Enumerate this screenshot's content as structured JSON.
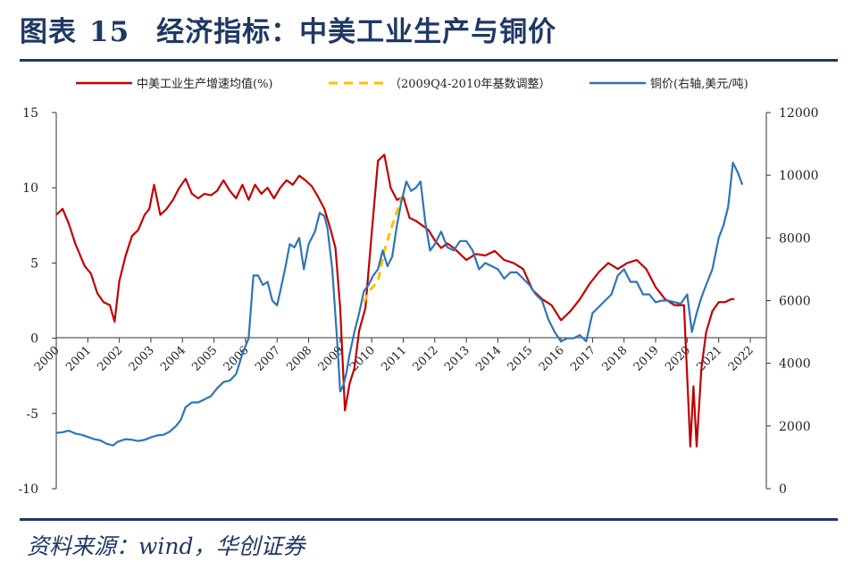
{
  "header": {
    "title_prefix": "图表",
    "title_number": "15",
    "title_text": "经济指标：中美工业生产与铜价"
  },
  "footer": {
    "source": "资料来源：wind，华创证券"
  },
  "chart_data": {
    "type": "line",
    "title": "经济指标：中美工业生产与铜价",
    "x_ticks": [
      "2000",
      "2001",
      "2002",
      "2003",
      "2004",
      "2005",
      "2006",
      "2007",
      "2008",
      "2009",
      "2010",
      "2011",
      "2012",
      "2013",
      "2014",
      "2015",
      "2016",
      "2017",
      "2018",
      "2019",
      "2020",
      "2021",
      "2022"
    ],
    "y_left": {
      "min": -10,
      "max": 15,
      "ticks": [
        15,
        10,
        5,
        0,
        -5,
        -10
      ]
    },
    "y_right": {
      "min": 0,
      "max": 12000,
      "ticks": [
        12000,
        10000,
        8000,
        6000,
        4000,
        2000,
        0
      ]
    },
    "legend": [
      "中美工业生产增速均值(%)",
      "（2009Q4-2010年基数调整）",
      "铜价(右轴,美元/吨)"
    ],
    "colors": {
      "ip": "#c00000",
      "adj": "#ffc000",
      "copper": "#2e75b6",
      "brand": "#1f3864"
    },
    "series": [
      {
        "name": "中美工业生产增速均值(%)",
        "axis": "left",
        "color": "#c00000",
        "style": "solid",
        "x": [
          2000.0,
          2000.2,
          2000.4,
          2000.6,
          2000.9,
          2001.1,
          2001.3,
          2001.5,
          2001.7,
          2001.85,
          2002.0,
          2002.2,
          2002.4,
          2002.6,
          2002.8,
          2002.95,
          2003.1,
          2003.3,
          2003.5,
          2003.7,
          2003.9,
          2004.1,
          2004.3,
          2004.5,
          2004.7,
          2004.9,
          2005.1,
          2005.3,
          2005.5,
          2005.7,
          2005.9,
          2006.1,
          2006.3,
          2006.5,
          2006.7,
          2006.9,
          2007.1,
          2007.3,
          2007.5,
          2007.7,
          2007.9,
          2008.1,
          2008.3,
          2008.5,
          2008.7,
          2008.85,
          2009.0,
          2009.15,
          2009.3,
          2009.45,
          2009.6,
          2009.8,
          2010.0,
          2010.2,
          2010.4,
          2010.6,
          2010.8,
          2011.0,
          2011.2,
          2011.4,
          2011.6,
          2011.8,
          2012.0,
          2012.2,
          2012.4,
          2012.6,
          2012.8,
          2013.0,
          2013.3,
          2013.6,
          2013.9,
          2014.2,
          2014.5,
          2014.8,
          2015.1,
          2015.4,
          2015.7,
          2016.0,
          2016.3,
          2016.6,
          2016.9,
          2017.2,
          2017.5,
          2017.8,
          2018.1,
          2018.4,
          2018.7,
          2019.0,
          2019.3,
          2019.6,
          2019.9,
          2020.1,
          2020.2,
          2020.3,
          2020.45,
          2020.6,
          2020.8,
          2021.0,
          2021.2,
          2021.4,
          2021.5
        ],
        "y": [
          8.2,
          8.6,
          7.6,
          6.3,
          4.8,
          4.3,
          3.0,
          2.4,
          2.2,
          1.1,
          3.8,
          5.5,
          6.8,
          7.2,
          8.2,
          8.6,
          10.2,
          8.2,
          8.6,
          9.2,
          10.0,
          10.6,
          9.6,
          9.3,
          9.6,
          9.5,
          9.8,
          10.5,
          9.8,
          9.3,
          10.2,
          9.2,
          10.2,
          9.6,
          10.0,
          9.3,
          10.0,
          10.5,
          10.2,
          10.8,
          10.5,
          10.1,
          9.4,
          8.6,
          7.2,
          6.0,
          2.0,
          -4.8,
          -3.0,
          -2.0,
          0.5,
          2.0,
          7.0,
          11.8,
          12.2,
          10.0,
          9.2,
          9.4,
          8.0,
          7.8,
          7.5,
          7.2,
          6.5,
          6.0,
          6.3,
          6.0,
          5.6,
          5.2,
          5.6,
          5.5,
          5.8,
          5.2,
          5.0,
          4.6,
          3.2,
          2.6,
          2.2,
          1.2,
          1.8,
          2.6,
          3.6,
          4.4,
          5.0,
          4.6,
          5.0,
          5.2,
          4.6,
          3.4,
          2.6,
          2.2,
          2.2,
          -7.2,
          -3.2,
          -7.2,
          -2.0,
          0.4,
          1.8,
          2.4,
          2.4,
          2.6,
          2.6
        ]
      },
      {
        "name": "（2009Q4-2010年基数调整）",
        "axis": "left",
        "color": "#ffc000",
        "style": "dashed",
        "x": [
          2009.75,
          2009.95,
          2010.2,
          2010.4,
          2010.6,
          2010.8,
          2010.95
        ],
        "y": [
          2.4,
          3.2,
          3.8,
          5.8,
          7.2,
          8.4,
          9.4
        ]
      },
      {
        "name": "铜价(右轴,美元/吨)",
        "axis": "right",
        "color": "#2e75b6",
        "style": "solid",
        "x": [
          2000.0,
          2000.2,
          2000.4,
          2000.6,
          2000.8,
          2001.0,
          2001.2,
          2001.4,
          2001.6,
          2001.8,
          2001.95,
          2002.2,
          2002.4,
          2002.6,
          2002.8,
          2003.0,
          2003.2,
          2003.4,
          2003.6,
          2003.8,
          2003.95,
          2004.1,
          2004.3,
          2004.5,
          2004.7,
          2004.9,
          2005.1,
          2005.3,
          2005.5,
          2005.7,
          2005.9,
          2006.1,
          2006.25,
          2006.4,
          2006.55,
          2006.7,
          2006.85,
          2007.0,
          2007.1,
          2007.25,
          2007.4,
          2007.55,
          2007.7,
          2007.85,
          2008.0,
          2008.2,
          2008.35,
          2008.5,
          2008.6,
          2008.75,
          2008.9,
          2009.0,
          2009.1,
          2009.2,
          2009.3,
          2009.45,
          2009.6,
          2009.75,
          2009.9,
          2010.05,
          2010.2,
          2010.35,
          2010.5,
          2010.65,
          2010.8,
          2010.95,
          2011.1,
          2011.25,
          2011.4,
          2011.55,
          2011.7,
          2011.85,
          2012.0,
          2012.2,
          2012.4,
          2012.6,
          2012.8,
          2013.0,
          2013.2,
          2013.4,
          2013.6,
          2013.8,
          2014.0,
          2014.2,
          2014.4,
          2014.6,
          2014.8,
          2015.0,
          2015.2,
          2015.4,
          2015.6,
          2015.8,
          2016.0,
          2016.2,
          2016.4,
          2016.6,
          2016.8,
          2017.0,
          2017.2,
          2017.4,
          2017.6,
          2017.8,
          2018.0,
          2018.2,
          2018.4,
          2018.6,
          2018.8,
          2019.0,
          2019.2,
          2019.4,
          2019.6,
          2019.8,
          2020.0,
          2020.15,
          2020.3,
          2020.45,
          2020.6,
          2020.8,
          2021.0,
          2021.15,
          2021.3,
          2021.45,
          2021.6,
          2021.75
        ],
        "y": [
          1780,
          1800,
          1850,
          1760,
          1720,
          1650,
          1580,
          1540,
          1430,
          1380,
          1500,
          1580,
          1560,
          1520,
          1560,
          1640,
          1700,
          1720,
          1820,
          2000,
          2200,
          2600,
          2750,
          2750,
          2850,
          2950,
          3200,
          3400,
          3450,
          3650,
          4300,
          4800,
          6800,
          6800,
          6500,
          6600,
          6000,
          5850,
          6300,
          7000,
          7800,
          7700,
          8000,
          7000,
          7800,
          8200,
          8800,
          8700,
          8300,
          7000,
          4800,
          3100,
          3300,
          3700,
          4300,
          5000,
          5600,
          6300,
          6500,
          6800,
          7000,
          7600,
          7100,
          7400,
          8400,
          9200,
          9800,
          9500,
          9600,
          9800,
          8500,
          7600,
          7800,
          8200,
          7700,
          7600,
          7900,
          7900,
          7600,
          7000,
          7200,
          7100,
          7000,
          6700,
          6900,
          6900,
          6700,
          6500,
          6200,
          6000,
          5400,
          5000,
          4700,
          4800,
          4800,
          4900,
          4700,
          5600,
          5800,
          6000,
          6200,
          6800,
          7000,
          6600,
          6600,
          6200,
          6200,
          5950,
          6000,
          6000,
          5950,
          5900,
          6200,
          5000,
          5600,
          6100,
          6500,
          7000,
          8000,
          8400,
          9000,
          10400,
          10100,
          9700
        ]
      }
    ]
  }
}
